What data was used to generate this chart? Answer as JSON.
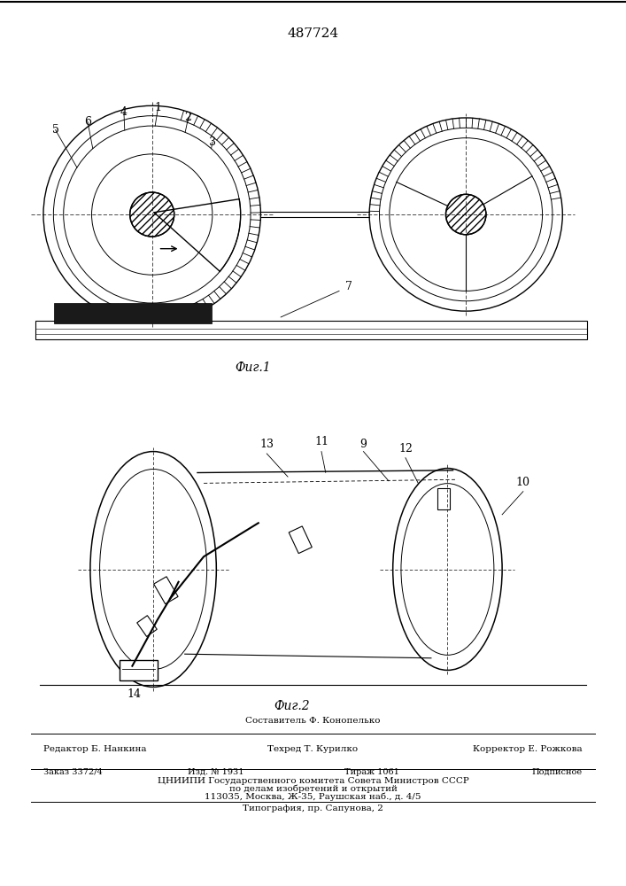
{
  "title": "487724",
  "fig1_label": "Фиг.1",
  "fig2_label": "Фиг.2",
  "footer_line1": "Составитель Ф. Конопелько",
  "footer_line2_left": "Редактор Б. Нанкина",
  "footer_line2_mid": "Техред Т. Курилко",
  "footer_line2_right": "Корректор Е. Рожкова",
  "footer_line3_left": "Заказ 3372/4",
  "footer_line3_mid1": "Изд. № 1931",
  "footer_line3_mid2": "Тираж 1061",
  "footer_line3_right": "Подписное",
  "footer_line4": "ЦНИИПИ Государственного комитета Совета Министров СССР",
  "footer_line5": "по делам изобретений и открытий",
  "footer_line6": "113035, Москва, Ж-35, Раушская наб., д. 4/5",
  "footer_line7": "Типография, пр. Сапунова, 2",
  "bg_color": "#ffffff"
}
